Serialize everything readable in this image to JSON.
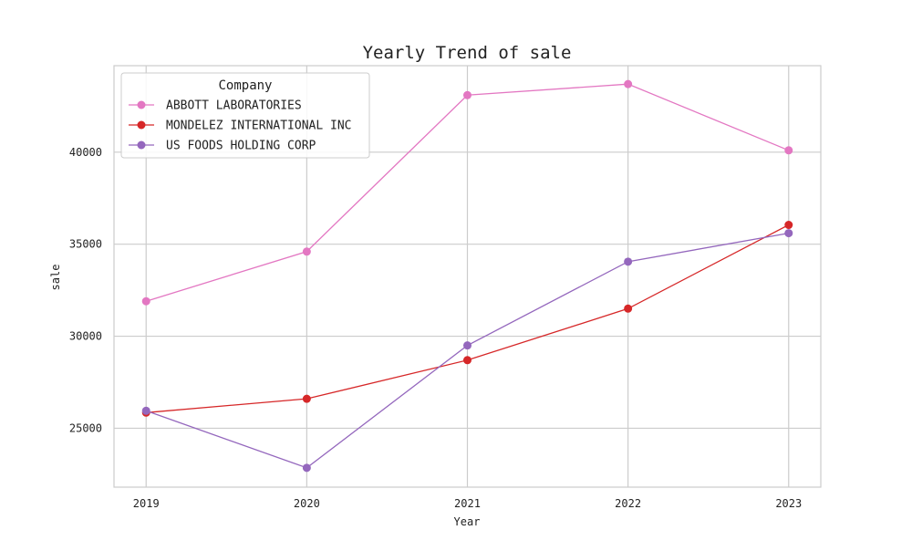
{
  "chart_data": {
    "type": "line",
    "title": "Yearly Trend of sale",
    "xlabel": "Year",
    "ylabel": "sale",
    "categories": [
      "2019",
      "2020",
      "2021",
      "2022",
      "2023"
    ],
    "x": [
      2019,
      2020,
      2021,
      2022,
      2023
    ],
    "xlim": [
      2018.8,
      2023.2
    ],
    "ylim": [
      21800,
      44700
    ],
    "yticks": [
      25000,
      30000,
      35000,
      40000
    ],
    "ytick_labels": [
      "25000",
      "30000",
      "35000",
      "40000"
    ],
    "grid": true,
    "legend": {
      "title": "Company",
      "position": "top-left"
    },
    "series": [
      {
        "name": "ABBOTT LABORATORIES",
        "color": "#e377c2",
        "values": [
          31900,
          34600,
          43100,
          43700,
          40100
        ]
      },
      {
        "name": "MONDELEZ INTERNATIONAL INC",
        "color": "#d62728",
        "values": [
          25850,
          26600,
          28700,
          31500,
          36050
        ]
      },
      {
        "name": "US FOODS HOLDING CORP",
        "color": "#9467bd",
        "values": [
          25950,
          22850,
          29500,
          34050,
          35600
        ]
      }
    ]
  }
}
